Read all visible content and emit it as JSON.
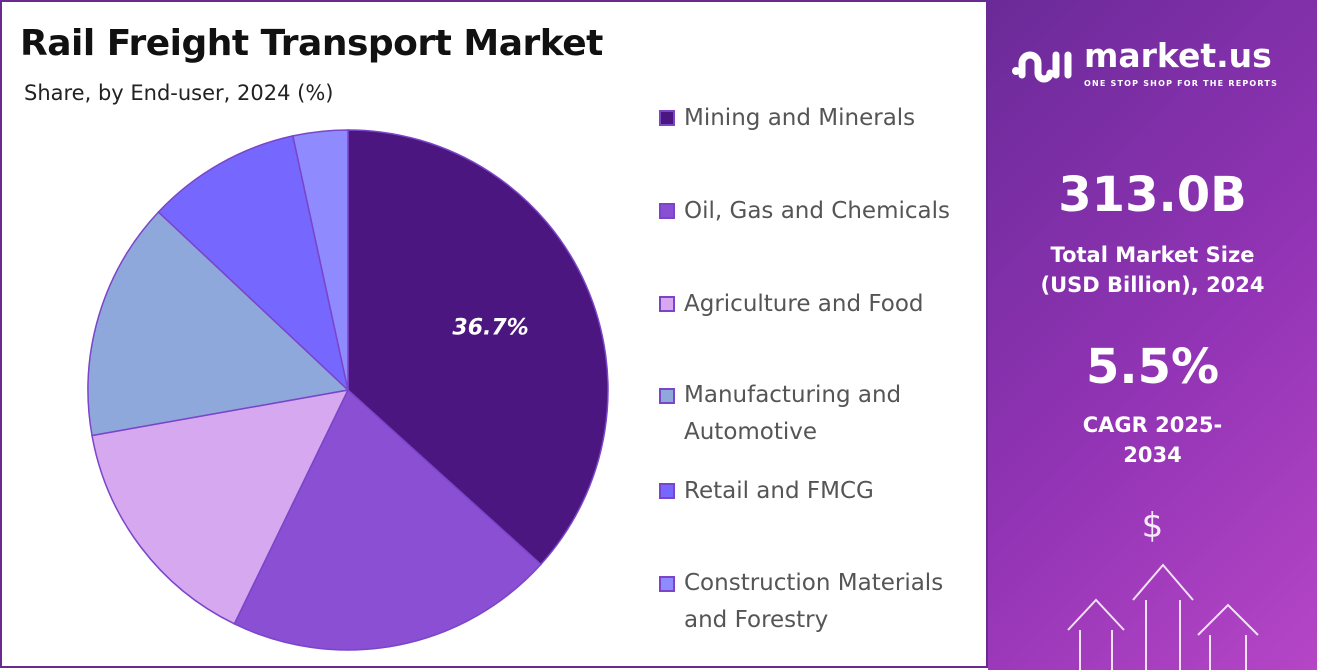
{
  "title": "Rail Freight Transport Market",
  "subtitle": "Share, by End-user, 2024 (%)",
  "chart_data": {
    "type": "pie",
    "title": "Rail Freight Transport Market",
    "subtitle": "Share, by End-user, 2024 (%)",
    "categories": [
      "Mining and Minerals",
      "Oil, Gas and Chemicals",
      "Agriculture and Food",
      "Manufacturing and Automotive",
      "Retail and FMCG",
      "Construction Materials and Forestry"
    ],
    "values": [
      36.7,
      20.5,
      15.0,
      14.8,
      9.6,
      3.4
    ],
    "colors": [
      "#4b1680",
      "#8a4fd3",
      "#d5a8ef",
      "#8ea8dc",
      "#7667ff",
      "#8f8bff"
    ],
    "data_labels": [
      "36.7%",
      "",
      "",
      "",
      "",
      ""
    ],
    "legend_position": "right"
  },
  "legend": [
    {
      "label": "Mining and Minerals"
    },
    {
      "label": "Oil, Gas and Chemicals"
    },
    {
      "label": "Agriculture and Food"
    },
    {
      "label": "Manufacturing and Automotive"
    },
    {
      "label": "Retail and FMCG"
    },
    {
      "label": "Construction Materials and Forestry"
    }
  ],
  "sidebar": {
    "logo_name": "market.us",
    "logo_tagline": "ONE STOP SHOP FOR THE REPORTS",
    "market_size": "313.0B",
    "market_size_label": "Total Market Size (USD Billion), 2024",
    "cagr": "5.5%",
    "cagr_label": "CAGR 2025-2034",
    "currency_symbol": "$"
  }
}
